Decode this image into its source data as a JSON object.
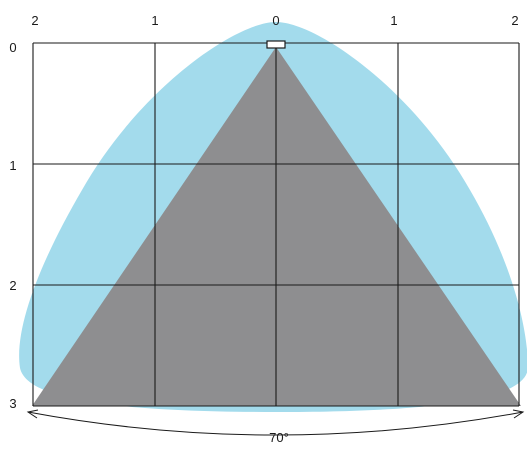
{
  "colors": {
    "coverage_fill": "#a3dbec",
    "core_fill": "#8e8e90",
    "grid_stroke": "#1a1a1a",
    "sensor_fill": "#ffffff"
  },
  "labels": {
    "top_axis": [
      "2",
      "1",
      "0",
      "1",
      "2"
    ],
    "left_axis": [
      "0",
      "1",
      "2",
      "3"
    ],
    "angle": "70°"
  },
  "icons": {
    "sensor": "sensor-icon",
    "angle_arrow": "double-arrow-arc-icon"
  }
}
